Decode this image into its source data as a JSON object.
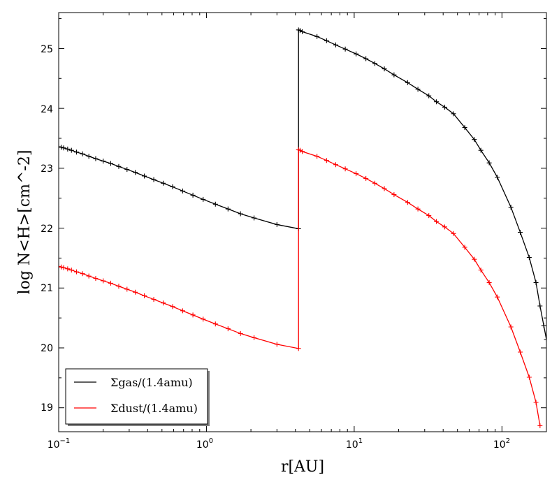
{
  "chart_data": {
    "type": "line",
    "xscale": "log",
    "xlim": [
      0.1,
      200
    ],
    "ylim": [
      18.6,
      25.6
    ],
    "grid": false,
    "legend_position": "lower-left",
    "xlabel": "r[AU]",
    "ylabel": "log N<H>[cm^-2]",
    "x_tick_labels": [
      "10^-1",
      "10^0",
      "10^1",
      "10^2"
    ],
    "y_tick_labels": [
      "19",
      "20",
      "21",
      "22",
      "23",
      "24",
      "25"
    ],
    "series": [
      {
        "name": "Σgas/(1.4amu)",
        "color": "#000000",
        "marker": "plus",
        "points": [
          [
            0.1,
            23.36
          ],
          [
            0.104,
            23.35
          ],
          [
            0.108,
            23.34
          ],
          [
            0.115,
            23.32
          ],
          [
            0.122,
            23.3
          ],
          [
            0.132,
            23.27
          ],
          [
            0.145,
            23.24
          ],
          [
            0.16,
            23.2
          ],
          [
            0.178,
            23.16
          ],
          [
            0.2,
            23.12
          ],
          [
            0.225,
            23.08
          ],
          [
            0.255,
            23.03
          ],
          [
            0.29,
            22.98
          ],
          [
            0.33,
            22.93
          ],
          [
            0.38,
            22.87
          ],
          [
            0.44,
            22.81
          ],
          [
            0.51,
            22.75
          ],
          [
            0.59,
            22.69
          ],
          [
            0.69,
            22.62
          ],
          [
            0.81,
            22.55
          ],
          [
            0.95,
            22.48
          ],
          [
            1.15,
            22.4
          ],
          [
            1.4,
            22.32
          ],
          [
            1.7,
            22.24
          ],
          [
            2.1,
            22.17
          ],
          [
            3.0,
            22.06
          ],
          [
            4.2,
            21.99
          ],
          [
            4.2,
            25.31
          ],
          [
            4.3,
            25.3
          ],
          [
            4.45,
            25.28
          ],
          [
            5.6,
            25.2
          ],
          [
            6.5,
            25.13
          ],
          [
            7.5,
            25.06
          ],
          [
            8.7,
            24.99
          ],
          [
            10.3,
            24.91
          ],
          [
            12.0,
            24.83
          ],
          [
            13.8,
            24.75
          ],
          [
            16.0,
            24.66
          ],
          [
            18.6,
            24.56
          ],
          [
            23.0,
            24.43
          ],
          [
            27.0,
            24.32
          ],
          [
            32.0,
            24.21
          ],
          [
            36.0,
            24.11
          ],
          [
            41.0,
            24.02
          ],
          [
            47.0,
            23.91
          ],
          [
            56.0,
            23.68
          ],
          [
            65.0,
            23.48
          ],
          [
            72.0,
            23.3
          ],
          [
            82.0,
            23.09
          ],
          [
            93.0,
            22.85
          ],
          [
            115.0,
            22.35
          ],
          [
            133.0,
            21.93
          ],
          [
            153.0,
            21.51
          ],
          [
            170.0,
            21.09
          ],
          [
            181.0,
            20.7
          ],
          [
            192.0,
            20.37
          ],
          [
            200.0,
            20.14
          ]
        ]
      },
      {
        "name": "Σdust/(1.4amu)",
        "color": "#ff0000",
        "marker": "plus",
        "points": [
          [
            0.1,
            21.36
          ],
          [
            0.104,
            21.35
          ],
          [
            0.108,
            21.34
          ],
          [
            0.115,
            21.32
          ],
          [
            0.122,
            21.3
          ],
          [
            0.132,
            21.27
          ],
          [
            0.145,
            21.24
          ],
          [
            0.16,
            21.2
          ],
          [
            0.178,
            21.16
          ],
          [
            0.2,
            21.12
          ],
          [
            0.225,
            21.08
          ],
          [
            0.255,
            21.03
          ],
          [
            0.29,
            20.98
          ],
          [
            0.33,
            20.93
          ],
          [
            0.38,
            20.87
          ],
          [
            0.44,
            20.81
          ],
          [
            0.51,
            20.75
          ],
          [
            0.59,
            20.69
          ],
          [
            0.69,
            20.62
          ],
          [
            0.81,
            20.55
          ],
          [
            0.95,
            20.48
          ],
          [
            1.15,
            20.4
          ],
          [
            1.4,
            20.32
          ],
          [
            1.7,
            20.24
          ],
          [
            2.1,
            20.17
          ],
          [
            3.0,
            20.06
          ],
          [
            4.2,
            19.99
          ],
          [
            4.2,
            23.31
          ],
          [
            4.3,
            23.3
          ],
          [
            4.45,
            23.28
          ],
          [
            5.6,
            23.2
          ],
          [
            6.5,
            23.13
          ],
          [
            7.5,
            23.06
          ],
          [
            8.7,
            22.99
          ],
          [
            10.3,
            22.91
          ],
          [
            12.0,
            22.83
          ],
          [
            13.8,
            22.75
          ],
          [
            16.0,
            22.66
          ],
          [
            18.6,
            22.56
          ],
          [
            23.0,
            22.43
          ],
          [
            27.0,
            22.32
          ],
          [
            32.0,
            22.21
          ],
          [
            36.0,
            22.11
          ],
          [
            41.0,
            22.02
          ],
          [
            47.0,
            21.91
          ],
          [
            56.0,
            21.68
          ],
          [
            65.0,
            21.48
          ],
          [
            72.0,
            21.3
          ],
          [
            82.0,
            21.09
          ],
          [
            93.0,
            20.85
          ],
          [
            115.0,
            20.35
          ],
          [
            133.0,
            19.93
          ],
          [
            153.0,
            19.51
          ],
          [
            170.0,
            19.09
          ],
          [
            181.0,
            18.7
          ]
        ]
      }
    ]
  }
}
